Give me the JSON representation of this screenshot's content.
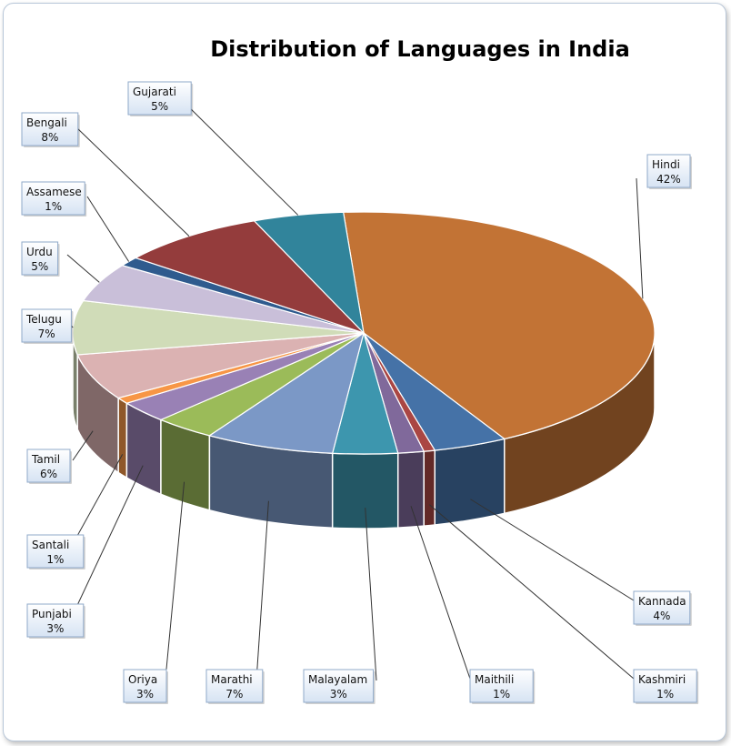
{
  "chart_data": {
    "type": "pie",
    "title": "Distribution of Languages in India",
    "slices": [
      {
        "label": "Hindi",
        "value": 42,
        "display": "42%",
        "color": "#c27335"
      },
      {
        "label": "Kannada",
        "value": 4,
        "display": "4%",
        "color": "#4572a7"
      },
      {
        "label": "Kashmiri",
        "value": 0.6,
        "display": "1%",
        "color": "#aa4643"
      },
      {
        "label": "Maithili",
        "value": 1.4,
        "display": "1%",
        "color": "#80699b"
      },
      {
        "label": "Malayalam",
        "value": 3.5,
        "display": "3%",
        "color": "#3d96ae"
      },
      {
        "label": "Marathi",
        "value": 7,
        "display": "7%",
        "color": "#7b98c6"
      },
      {
        "label": "Oriya",
        "value": 3.3,
        "display": "3%",
        "color": "#9bbb59"
      },
      {
        "label": "Punjabi",
        "value": 2.8,
        "display": "3%",
        "color": "#9981b5"
      },
      {
        "label": "Santali",
        "value": 0.8,
        "display": "1%",
        "color": "#f79646"
      },
      {
        "label": "Tamil",
        "value": 6,
        "display": "6%",
        "color": "#dbb2b2"
      },
      {
        "label": "Telugu",
        "value": 7,
        "display": "7%",
        "color": "#d0dcb8"
      },
      {
        "label": "Urdu",
        "value": 5,
        "display": "5%",
        "color": "#c9bfd9"
      },
      {
        "label": "Assamese",
        "value": 1.2,
        "display": "1%",
        "color": "#2f5b8e"
      },
      {
        "label": "Bengali",
        "value": 8,
        "display": "8%",
        "color": "#943c3c"
      },
      {
        "label": "Gujarati",
        "value": 4.9,
        "display": "5%",
        "color": "#31849b"
      }
    ],
    "legend": "none"
  }
}
